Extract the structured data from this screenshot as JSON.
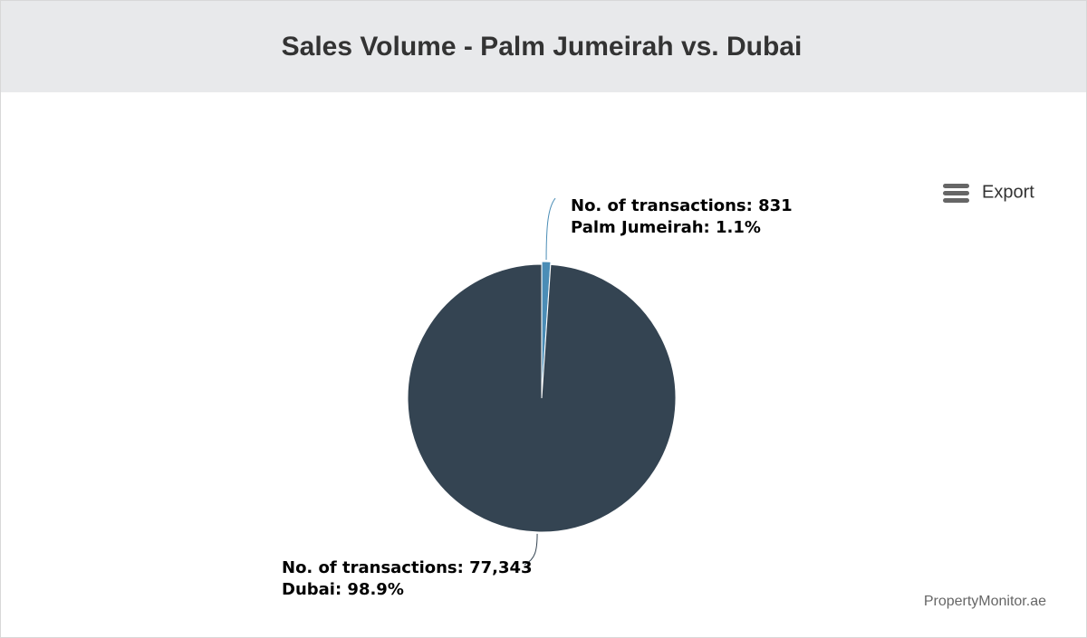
{
  "chart_data": {
    "type": "pie",
    "title": "Sales Volume - Palm Jumeirah vs. Dubai",
    "values": [
      831,
      77343
    ],
    "value_labels": [
      "No. of transactions: 831",
      "No. of transactions: 77,343"
    ],
    "percentages": [
      1.1,
      98.9
    ],
    "percentage_labels": [
      "Palm Jumeirah: 1.1%",
      "Dubai: 98.9%"
    ],
    "colors": [
      "#4b8db6",
      "#344452"
    ]
  },
  "ui": {
    "export": "Export",
    "credit": "PropertyMonitor.ae"
  }
}
